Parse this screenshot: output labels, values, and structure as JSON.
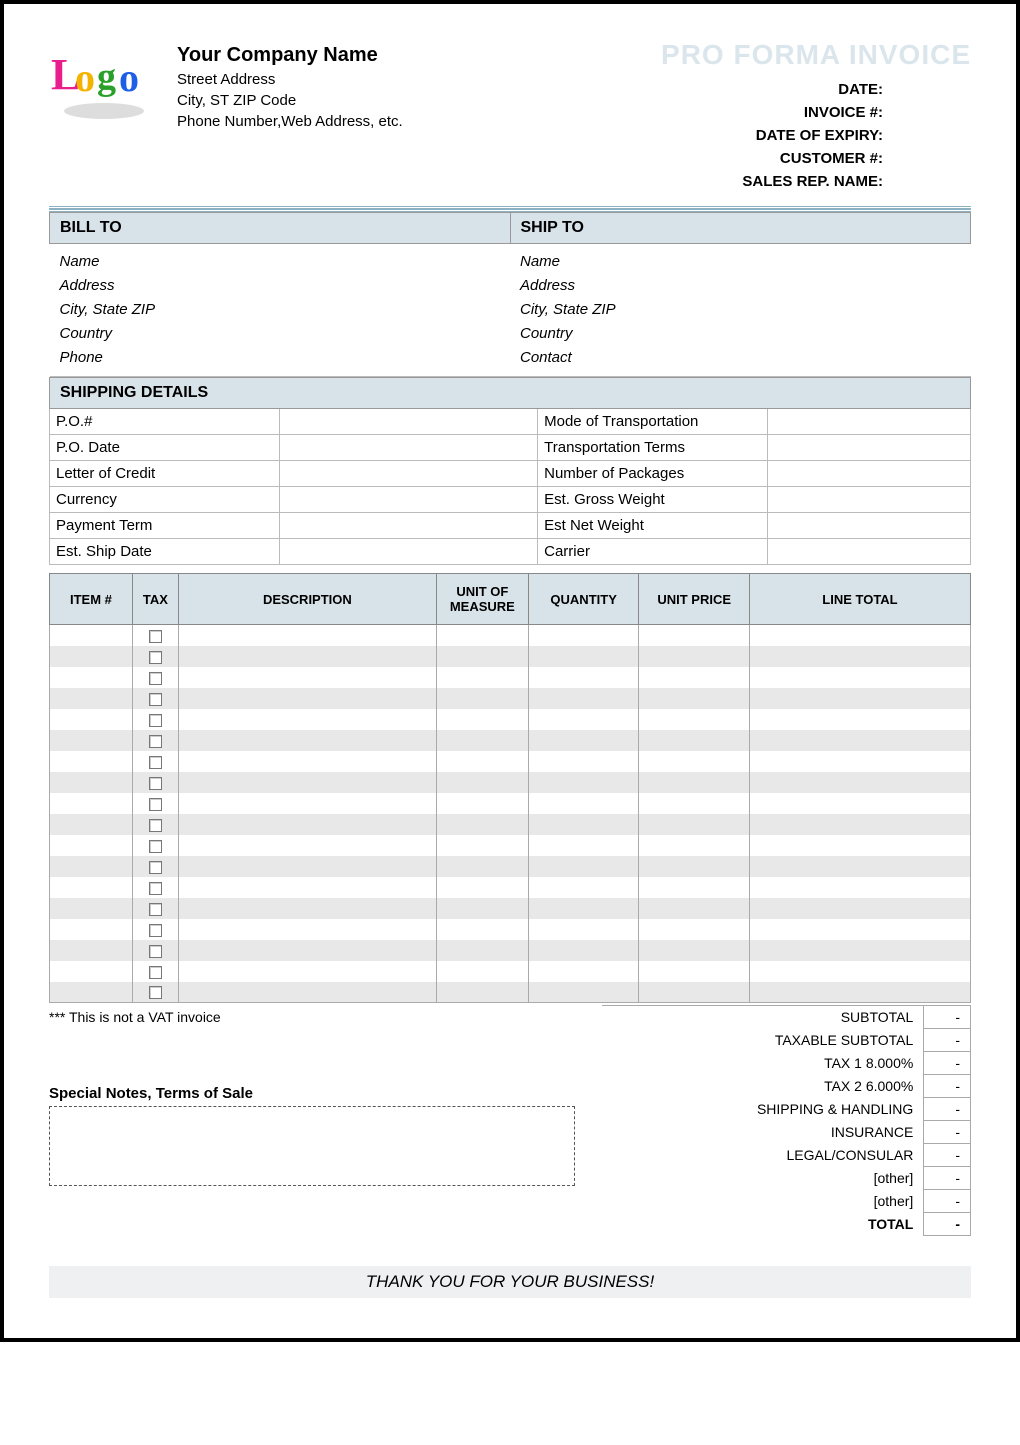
{
  "colors": {
    "header_bg": "#d8e3e9",
    "title_color": "#dbe6ec",
    "rule_color": "#8bb1c2",
    "alt_row": "#e8e8e8"
  },
  "company": {
    "name": "Your Company Name",
    "addr1": "Street Address",
    "addr2": "City, ST  ZIP Code",
    "addr3": "Phone Number,Web Address, etc."
  },
  "doc": {
    "title": "PRO FORMA INVOICE",
    "meta": {
      "date": "DATE:",
      "invoice": "INVOICE #:",
      "expiry": "DATE OF EXPIRY:",
      "customer": "CUSTOMER #:",
      "salesrep": "SALES REP. NAME:"
    }
  },
  "billto": {
    "header": "BILL TO",
    "lines": [
      "Name",
      "Address",
      "City, State ZIP",
      "Country",
      "Phone"
    ]
  },
  "shipto": {
    "header": "SHIP TO",
    "lines": [
      "Name",
      "Address",
      "City, State ZIP",
      "Country",
      "Contact"
    ]
  },
  "shipping": {
    "header": "SHIPPING DETAILS",
    "left": [
      "P.O.#",
      "P.O. Date",
      "Letter of Credit",
      "Currency",
      "Payment Term",
      "Est. Ship Date"
    ],
    "right": [
      "Mode of Transportation",
      "Transportation Terms",
      "Number of Packages",
      "Est. Gross Weight",
      "Est Net Weight",
      "Carrier"
    ]
  },
  "items_table": {
    "columns": [
      "ITEM #",
      "TAX",
      "DESCRIPTION",
      "UNIT OF MEASURE",
      "QUANTITY",
      "UNIT PRICE",
      "LINE TOTAL"
    ],
    "row_count": 18
  },
  "note_vat": "*** This is not a VAT invoice",
  "special": {
    "title": "Special Notes, Terms of Sale"
  },
  "totals": {
    "rows": [
      {
        "label": "SUBTOTAL",
        "value": "-"
      },
      {
        "label": "TAXABLE SUBTOTAL",
        "value": "-"
      },
      {
        "label": "TAX 1        8.000%",
        "value": "-"
      },
      {
        "label": "TAX 2        6.000%",
        "value": "-"
      },
      {
        "label": "SHIPPING & HANDLING",
        "value": "-"
      },
      {
        "label": "INSURANCE",
        "value": "-"
      },
      {
        "label": "LEGAL/CONSULAR",
        "value": "-"
      },
      {
        "label": "[other]",
        "value": "-"
      },
      {
        "label": "[other]",
        "value": "-"
      },
      {
        "label": "TOTAL",
        "value": "-",
        "bold": true
      }
    ]
  },
  "thankyou": "THANK YOU FOR YOUR BUSINESS!"
}
